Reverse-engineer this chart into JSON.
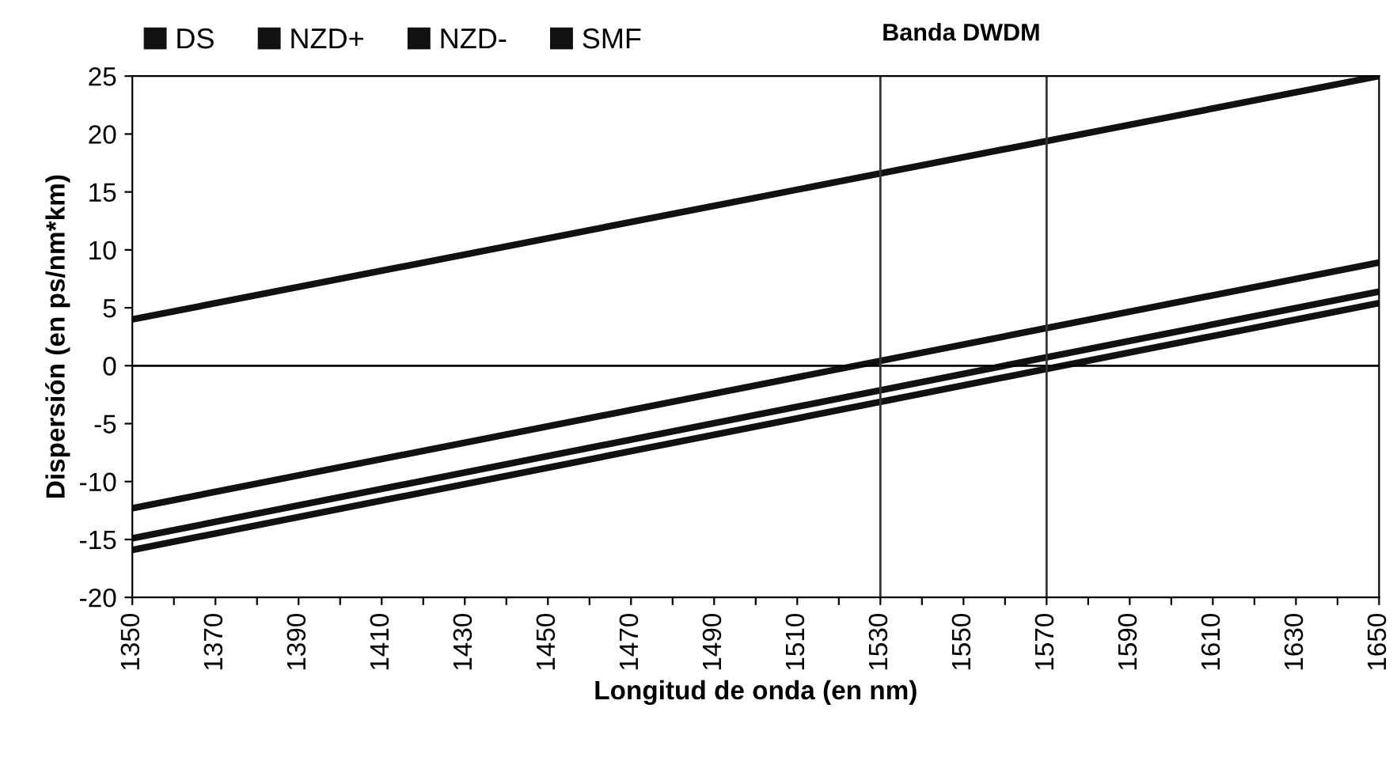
{
  "chart_data": {
    "type": "line",
    "xlabel": "Longitud de onda (en nm)",
    "ylabel": "Dispersión (en ps/nm*km)",
    "x": [
      1350,
      1650
    ],
    "series": [
      {
        "name": "DS",
        "color": "#111111",
        "values": [
          -14.9,
          6.4
        ]
      },
      {
        "name": "NZD+",
        "color": "#111111",
        "values": [
          -12.3,
          8.9
        ]
      },
      {
        "name": "NZD-",
        "color": "#111111",
        "values": [
          -15.9,
          5.4
        ]
      },
      {
        "name": "SMF",
        "color": "#111111",
        "values": [
          4,
          25
        ]
      }
    ],
    "xlim": [
      1350,
      1650
    ],
    "ylim": [
      -20,
      25
    ],
    "xticks": [
      1350,
      {
        "value": 1360,
        "label": null
      },
      1370,
      {
        "value": 1380,
        "label": null
      },
      1390,
      {
        "value": 1400,
        "label": null
      },
      1410,
      {
        "value": 1420,
        "label": null
      },
      1430,
      {
        "value": 1440,
        "label": null
      },
      1450,
      {
        "value": 1460,
        "label": null
      },
      1470,
      {
        "value": 1480,
        "label": null
      },
      1490,
      {
        "value": 1500,
        "label": null
      },
      1510,
      {
        "value": 1520,
        "label": null
      },
      1530,
      {
        "value": 1540,
        "label": null
      },
      1550,
      {
        "value": 1560,
        "label": null
      },
      1570,
      {
        "value": 1580,
        "label": null
      },
      1590,
      {
        "value": 1600,
        "label": null
      },
      1610,
      {
        "value": 1620,
        "label": null
      },
      1630,
      {
        "value": 1640,
        "label": null
      },
      1650
    ],
    "yticks": [
      -20,
      -15,
      -10,
      -5,
      0,
      5,
      10,
      15,
      20,
      25
    ],
    "ref_lines": [
      {
        "axis": "y",
        "value": 0,
        "color": "#000000"
      },
      {
        "axis": "x",
        "value": 1530,
        "color": "#333333"
      },
      {
        "axis": "x",
        "value": 1570,
        "color": "#333333"
      }
    ],
    "annotations": [
      "Banda DWDM"
    ],
    "legend": "top",
    "marker": "none",
    "line_style": "solid",
    "grid": false
  }
}
